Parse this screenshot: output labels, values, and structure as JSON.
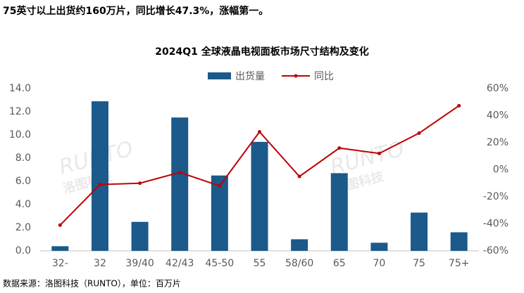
{
  "header": {
    "text": "75英寸以上出货约160万片，同比增长47.3%，涨幅第一。"
  },
  "chart_data": {
    "type": "bar",
    "title": "2024Q1 全球液晶电视面板市场尺寸结构及变化",
    "watermark": {
      "brand": "RUNTO",
      "name": "洛图科技"
    },
    "categories": [
      "32-",
      "32",
      "39/40",
      "42/43",
      "45-50",
      "55",
      "58/60",
      "65",
      "70",
      "75",
      "75+"
    ],
    "series": [
      {
        "name": "出货量",
        "type": "bar",
        "color": "#1b5a8a",
        "values": [
          0.4,
          12.9,
          2.5,
          11.5,
          6.5,
          9.4,
          1.0,
          6.7,
          0.7,
          3.3,
          1.6
        ]
      },
      {
        "name": "同比",
        "type": "line",
        "axis": "y2",
        "color": "#c00000",
        "values": [
          -41,
          -11,
          -10,
          -2,
          -12,
          28,
          -5,
          16,
          12,
          27,
          47.3
        ]
      }
    ],
    "ylim": [
      0,
      14
    ],
    "yticks": [
      {
        "value": 0,
        "label": "0.0"
      },
      {
        "value": 2,
        "label": "2.0"
      },
      {
        "value": 4,
        "label": "4.0"
      },
      {
        "value": 6,
        "label": "6.0"
      },
      {
        "value": 8,
        "label": "8.0"
      },
      {
        "value": 10,
        "label": "10.0"
      },
      {
        "value": 12,
        "label": "12.0"
      },
      {
        "value": 14,
        "label": "14.0"
      }
    ],
    "y2lim": [
      -60,
      60
    ],
    "y2ticks": [
      {
        "value": -60,
        "label": "-60%"
      },
      {
        "value": -40,
        "label": "-40%"
      },
      {
        "value": -20,
        "label": "-20%"
      },
      {
        "value": 0,
        "label": "0%"
      },
      {
        "value": 20,
        "label": "20%"
      },
      {
        "value": 40,
        "label": "40%"
      },
      {
        "value": 60,
        "label": "60%"
      }
    ],
    "grid": false,
    "legend": "top"
  },
  "footer": {
    "source": "数据来源：洛图科技（RUNTO），单位：百万片"
  }
}
